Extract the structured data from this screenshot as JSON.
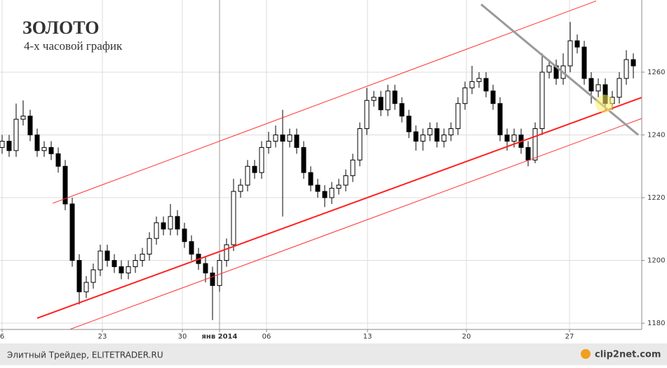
{
  "chart_data": {
    "type": "candlestick",
    "title": "ЗОЛОТО",
    "subtitle": "4-х часовой график",
    "x": [
      0,
      1,
      2,
      3,
      4,
      5,
      6,
      7,
      8,
      9,
      10,
      11,
      12,
      13,
      14,
      15,
      16,
      17,
      18,
      19,
      20,
      21,
      22,
      23,
      24,
      25,
      26,
      27,
      28,
      29,
      30,
      31,
      32,
      33,
      34,
      35,
      36,
      37,
      38,
      39,
      40,
      41,
      42,
      43,
      44,
      45,
      46,
      47,
      48,
      49,
      50,
      51,
      52,
      53,
      54,
      55,
      56,
      57,
      58,
      59,
      60,
      61,
      62,
      63,
      64,
      65,
      66,
      67,
      68,
      69,
      70,
      71,
      72,
      73,
      74,
      75,
      76,
      77,
      78,
      79,
      80,
      81,
      82,
      83,
      84,
      85,
      86,
      87,
      88,
      89,
      90
    ],
    "open": [
      1236,
      1238,
      1235,
      1245,
      1246,
      1240,
      1235,
      1236,
      1234,
      1230,
      1218,
      1200,
      1190,
      1193,
      1197,
      1203,
      1200,
      1198,
      1196,
      1198,
      1200,
      1202,
      1207,
      1212,
      1210,
      1214,
      1210,
      1206,
      1202,
      1199,
      1196,
      1192,
      1200,
      1205,
      1222,
      1224,
      1230,
      1228,
      1236,
      1238,
      1240,
      1238,
      1240,
      1236,
      1228,
      1224,
      1222,
      1220,
      1223,
      1224,
      1227,
      1232,
      1242,
      1251,
      1252,
      1248,
      1254,
      1250,
      1246,
      1241,
      1238,
      1240,
      1242,
      1238,
      1240,
      1242,
      1250,
      1255,
      1257,
      1258,
      1254,
      1250,
      1240,
      1238,
      1240,
      1236,
      1232,
      1242,
      1260,
      1262,
      1258,
      1262,
      1270,
      1268,
      1258,
      1254,
      1256,
      1250,
      1252,
      1258,
      1264
    ],
    "high": [
      1240,
      1240,
      1250,
      1251,
      1248,
      1242,
      1238,
      1238,
      1236,
      1232,
      1220,
      1202,
      1195,
      1199,
      1205,
      1205,
      1202,
      1200,
      1200,
      1202,
      1204,
      1209,
      1214,
      1214,
      1218,
      1216,
      1212,
      1208,
      1204,
      1201,
      1198,
      1202,
      1207,
      1226,
      1226,
      1232,
      1232,
      1238,
      1241,
      1243,
      1248,
      1242,
      1242,
      1238,
      1230,
      1226,
      1224,
      1225,
      1226,
      1229,
      1234,
      1244,
      1255,
      1254,
      1254,
      1256,
      1256,
      1252,
      1248,
      1243,
      1242,
      1244,
      1244,
      1242,
      1244,
      1252,
      1257,
      1262,
      1260,
      1260,
      1256,
      1252,
      1242,
      1242,
      1242,
      1238,
      1244,
      1266,
      1264,
      1264,
      1266,
      1276,
      1272,
      1270,
      1260,
      1258,
      1258,
      1254,
      1260,
      1267,
      1266
    ],
    "low": [
      1234,
      1233,
      1233,
      1243,
      1238,
      1233,
      1233,
      1232,
      1228,
      1216,
      1198,
      1186,
      1188,
      1191,
      1195,
      1198,
      1196,
      1194,
      1194,
      1196,
      1198,
      1200,
      1205,
      1208,
      1208,
      1208,
      1204,
      1200,
      1197,
      1193,
      1181,
      1190,
      1198,
      1203,
      1220,
      1222,
      1226,
      1226,
      1234,
      1236,
      1214,
      1236,
      1234,
      1226,
      1222,
      1220,
      1217,
      1218,
      1221,
      1222,
      1225,
      1230,
      1240,
      1249,
      1246,
      1246,
      1248,
      1244,
      1239,
      1235,
      1235,
      1238,
      1236,
      1236,
      1238,
      1240,
      1248,
      1253,
      1255,
      1252,
      1248,
      1238,
      1235,
      1236,
      1234,
      1230,
      1231,
      1240,
      1258,
      1256,
      1256,
      1260,
      1266,
      1256,
      1250,
      1252,
      1248,
      1248,
      1250,
      1256,
      1258
    ],
    "close": [
      1238,
      1235,
      1245,
      1246,
      1240,
      1235,
      1236,
      1234,
      1230,
      1218,
      1200,
      1190,
      1193,
      1197,
      1203,
      1200,
      1198,
      1196,
      1198,
      1200,
      1202,
      1207,
      1212,
      1210,
      1214,
      1210,
      1206,
      1202,
      1199,
      1196,
      1192,
      1200,
      1205,
      1222,
      1224,
      1230,
      1228,
      1236,
      1238,
      1240,
      1238,
      1240,
      1236,
      1228,
      1224,
      1222,
      1220,
      1223,
      1224,
      1227,
      1232,
      1242,
      1251,
      1252,
      1248,
      1254,
      1250,
      1246,
      1241,
      1238,
      1240,
      1242,
      1238,
      1240,
      1242,
      1250,
      1255,
      1257,
      1258,
      1254,
      1250,
      1240,
      1238,
      1240,
      1236,
      1232,
      1242,
      1260,
      1262,
      1258,
      1262,
      1270,
      1268,
      1258,
      1254,
      1256,
      1250,
      1252,
      1258,
      1264,
      1262
    ],
    "xlim": [
      -0.3,
      91.2
    ],
    "xticks": [
      {
        "value": 0,
        "label": "6"
      },
      {
        "value": 14.3,
        "label": "23"
      },
      {
        "value": 25.7,
        "label": "30"
      },
      {
        "value": 31,
        "label": "янв 2014"
      },
      {
        "value": 37.7,
        "label": "06"
      },
      {
        "value": 52.1,
        "label": "13"
      },
      {
        "value": 66.2,
        "label": "20"
      },
      {
        "value": 80.9,
        "label": "27"
      }
    ],
    "ylim": [
      1178,
      1283
    ],
    "yticks": [
      1180,
      1200,
      1220,
      1240,
      1260
    ],
    "grid": true,
    "up_color": "#ffffff",
    "down_color": "#000000",
    "lines": [
      {
        "color": "#ff2020",
        "width": 2,
        "x": [
          5.0,
          93.5
        ],
        "y": [
          1181.6,
          1253.8
        ]
      },
      {
        "color": "#ff3030",
        "width": 1,
        "x": [
          7.2,
          84.7
        ],
        "y": [
          1218.2,
          1282.7
        ]
      },
      {
        "color": "#ff3030",
        "width": 1,
        "x": [
          7.2,
          94.8
        ],
        "y": [
          1176,
          1248.2
        ]
      },
      {
        "color": "#999999",
        "width": 3,
        "x": [
          68.3,
          90.7
        ],
        "y": [
          1281.6,
          1240
        ]
      }
    ]
  },
  "footer": "Элитный Трейдер, ELITETRADER.RU",
  "watermark": "clip2net.com"
}
